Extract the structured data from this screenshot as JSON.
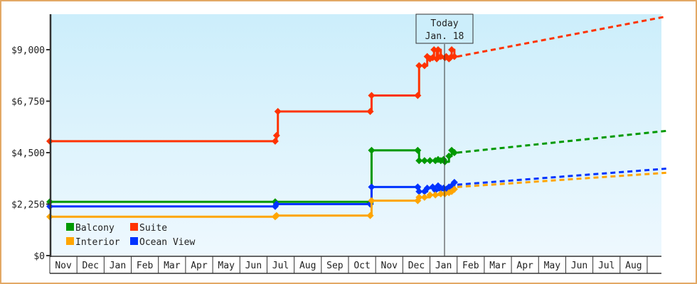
{
  "chart_data": {
    "type": "line",
    "title": "",
    "xlabel": "",
    "ylabel": "",
    "ylim": [
      0,
      10000
    ],
    "y_ticks": [
      "$0",
      "$2,250",
      "$4,500",
      "$6,750",
      "$9,000"
    ],
    "y_tick_values": [
      0,
      2250,
      4500,
      6750,
      9000
    ],
    "x_ticks": [
      "Nov",
      "Dec",
      "Jan",
      "Feb",
      "Mar",
      "Apr",
      "May",
      "Jun",
      "Jul",
      "Aug",
      "Sep",
      "Oct",
      "Nov",
      "Dec",
      "Jan",
      "Feb",
      "Mar",
      "Apr",
      "May",
      "Jun",
      "Jul",
      "Aug"
    ],
    "today_marker": {
      "line1": "Today",
      "line2": "Jan. 18",
      "x_month_index": 14.4
    },
    "legend": [
      {
        "name": "Balcony",
        "color": "#009900"
      },
      {
        "name": "Suite",
        "color": "#FF3300"
      },
      {
        "name": "Interior",
        "color": "#FFA500"
      },
      {
        "name": "Ocean View",
        "color": "#0033FF"
      }
    ],
    "series": [
      {
        "name": "Suite",
        "color": "#FF3300",
        "history": [
          [
            0,
            5000
          ],
          [
            8.3,
            5000
          ],
          [
            8.35,
            5250
          ],
          [
            8.4,
            6300
          ],
          [
            11.8,
            6300
          ],
          [
            11.85,
            7000
          ],
          [
            13.55,
            7000
          ],
          [
            13.6,
            8300
          ],
          [
            13.8,
            8300
          ],
          [
            13.9,
            8700
          ],
          [
            14.0,
            8600
          ],
          [
            14.1,
            8650
          ],
          [
            14.15,
            9000
          ],
          [
            14.25,
            8600
          ],
          [
            14.3,
            9000
          ],
          [
            14.4,
            8700
          ],
          [
            14.55,
            8650
          ],
          [
            14.6,
            8700
          ],
          [
            14.7,
            8600
          ],
          [
            14.75,
            8650
          ],
          [
            14.8,
            9000
          ],
          [
            14.9,
            8700
          ]
        ],
        "forecast": [
          [
            14.9,
            8700
          ],
          [
            22.7,
            10450
          ]
        ]
      },
      {
        "name": "Balcony",
        "color": "#009900",
        "history": [
          [
            0,
            2350
          ],
          [
            8.3,
            2350
          ],
          [
            11.8,
            2300
          ],
          [
            11.85,
            4600
          ],
          [
            13.55,
            4600
          ],
          [
            13.6,
            4150
          ],
          [
            13.8,
            4150
          ],
          [
            14.0,
            4150
          ],
          [
            14.2,
            4150
          ],
          [
            14.3,
            4200
          ],
          [
            14.4,
            4150
          ],
          [
            14.5,
            4200
          ],
          [
            14.55,
            4100
          ],
          [
            14.7,
            4350
          ],
          [
            14.8,
            4600
          ],
          [
            14.9,
            4500
          ]
        ],
        "forecast": [
          [
            14.9,
            4500
          ],
          [
            22.7,
            5450
          ]
        ]
      },
      {
        "name": "Ocean View",
        "color": "#0033FF",
        "history": [
          [
            0,
            2150
          ],
          [
            8.3,
            2150
          ],
          [
            8.35,
            2250
          ],
          [
            11.8,
            2250
          ],
          [
            11.85,
            3000
          ],
          [
            13.55,
            3000
          ],
          [
            13.6,
            2800
          ],
          [
            13.8,
            2800
          ],
          [
            13.9,
            2950
          ],
          [
            14.1,
            3000
          ],
          [
            14.2,
            2850
          ],
          [
            14.3,
            3050
          ],
          [
            14.4,
            2900
          ],
          [
            14.5,
            2950
          ],
          [
            14.6,
            2900
          ],
          [
            14.7,
            3000
          ],
          [
            14.8,
            3050
          ],
          [
            14.9,
            3200
          ]
        ],
        "forecast": [
          [
            14.9,
            3100
          ],
          [
            22.7,
            3800
          ]
        ]
      },
      {
        "name": "Interior",
        "color": "#FFA500",
        "history": [
          [
            0,
            1700
          ],
          [
            8.3,
            1700
          ],
          [
            8.35,
            1750
          ],
          [
            11.8,
            1750
          ],
          [
            11.85,
            2400
          ],
          [
            13.55,
            2400
          ],
          [
            13.6,
            2550
          ],
          [
            13.8,
            2550
          ],
          [
            14.0,
            2650
          ],
          [
            14.2,
            2650
          ],
          [
            14.4,
            2700
          ],
          [
            14.55,
            2700
          ],
          [
            14.7,
            2750
          ],
          [
            14.8,
            2800
          ],
          [
            14.9,
            2900
          ]
        ],
        "forecast": [
          [
            14.9,
            3000
          ],
          [
            22.7,
            3620
          ]
        ]
      }
    ]
  }
}
